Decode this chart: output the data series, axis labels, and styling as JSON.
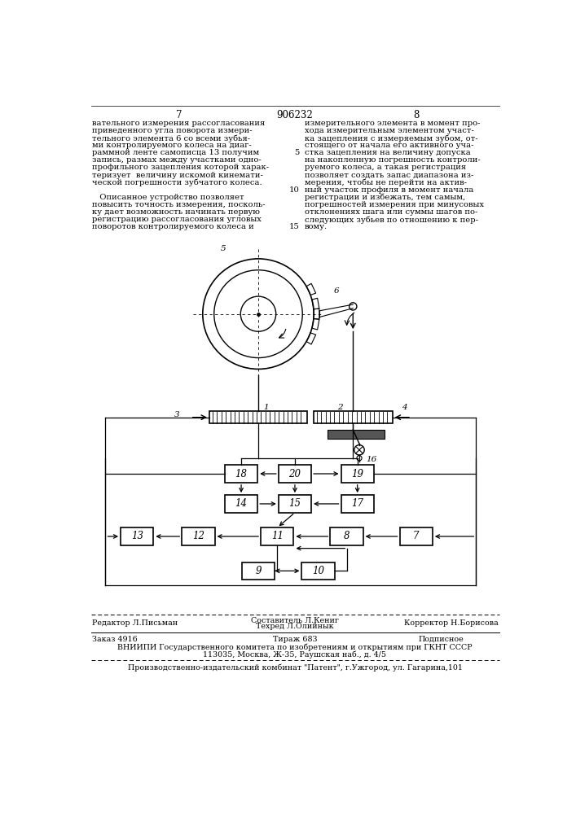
{
  "page_number_left": "7",
  "page_number_center": "906232",
  "page_number_right": "8",
  "text_left_col": [
    "вательного измерения рассогласования",
    "приведенного угла поворота измери-",
    "тельного элемента 6 со всеми зубья-",
    "ми контролируемого колеса на диаг-",
    "раммной ленте самописца 13 получим",
    "запись, размах между участками одно-",
    "профильного зацепления которой харак-",
    "теризует  величину искомой кинемати-",
    "ческой погрешности зубчатого колеса.",
    "",
    "   Описанное устройство позволяет",
    "повысить точность измерения, посколь-",
    "ку дает возможность начинать первую",
    "регистрацию рассогласования угловых",
    "поворотов контролируемого колеса и"
  ],
  "text_right_col": [
    "измерительного элемента в момент про-",
    "хода измерительным элементом участ-",
    "ка зацепления с измеряемым зубом, от-",
    "стоящего от начала его активного уча-",
    "стка зацепления на величину допуска",
    "на накопленную погрешность контроли-",
    "руемого колеса, а такая регистрация",
    "позволяет создать запас диапазона из-",
    "мерения, чтобы не перейти на актив-",
    "ный участок профиля в момент начала",
    "регистрации и избежать, тем самым,",
    "погрешностей измерения при минусовых",
    "отклонениях шага или суммы шагов по-",
    "следующих зубьев по отношению к пер-",
    "вому."
  ],
  "footer_line1_left": "Редактор Л.Письман",
  "footer_line1_center_top": "Составитель Л.Кениг",
  "footer_line1_center_bot": "Техред Л.Олийнык",
  "footer_line1_right": "Корректор Н.Борисова",
  "footer_order": "Заказ 4916",
  "footer_tirazh": "Тираж 683",
  "footer_podpisnoe": "Подписное",
  "footer_vniiipi": "ВНИИПИ Государственного комитета по изобретениям и открытиям при ГКНТ СССР",
  "footer_address": "113035, Москва, Ж-35, Раушская наб., д. 4/5",
  "footer_proizv": "Производственно-издательский комбинат \"Патент\", г.Ужгород, ул. Гагарина,101",
  "bg_color": "#ffffff",
  "text_color": "#000000",
  "font_size_body": 7.2,
  "font_size_footer": 6.8,
  "font_size_header": 8.5,
  "font_size_label": 7.5
}
